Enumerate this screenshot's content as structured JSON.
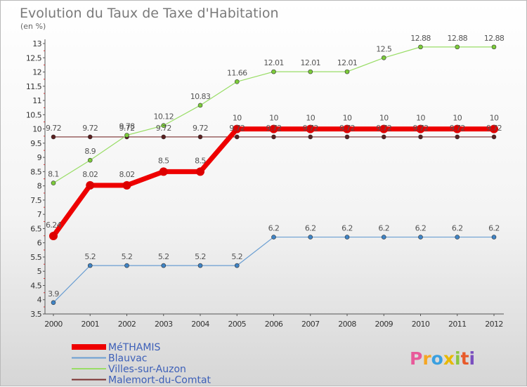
{
  "chart_data": {
    "type": "line",
    "title": "Evolution du Taux de Taxe d'Habitation",
    "subtitle": "(en %)",
    "ylim": [
      3.5,
      13
    ],
    "yticks": [
      3.5,
      4,
      4.5,
      5,
      5.5,
      6,
      6.5,
      7,
      7.5,
      8,
      8.5,
      9,
      9.5,
      10,
      10.5,
      11,
      11.5,
      12,
      12.5,
      13
    ],
    "x": [
      "2000",
      "2001",
      "2002",
      "2003",
      "2004",
      "2005",
      "2006",
      "2007",
      "2008",
      "2009",
      "2010",
      "2011",
      "2012"
    ],
    "grid": false,
    "legend_position": "bottom-left",
    "series": [
      {
        "name": "Malemort-du-Comtat",
        "color": "#7a2e2e",
        "marker": "#5a1f1f",
        "width": 1.2,
        "r": 3,
        "values": [
          9.72,
          9.72,
          9.72,
          9.72,
          9.72,
          9.72,
          9.72,
          9.72,
          9.72,
          9.72,
          9.72,
          9.72,
          9.72
        ],
        "labels": [
          "9.72",
          "9.72",
          "9.72",
          "9.72",
          "9.72",
          "9.72",
          "9.72",
          "9.72",
          "9.72",
          "9.72",
          "9.72",
          "9.72",
          "9.72"
        ]
      },
      {
        "name": "Villes-sur-Auzon",
        "color": "#99dd66",
        "marker": "#7ccc3a",
        "width": 1.2,
        "r": 3,
        "values": [
          8.1,
          8.9,
          9.78,
          10.12,
          10.83,
          11.66,
          12.01,
          12.01,
          12.01,
          12.5,
          12.88,
          12.88,
          12.88
        ],
        "labels": [
          "8.1",
          "8.9",
          "9.78",
          "10.12",
          "10.83",
          "11.66",
          "12.01",
          "12.01",
          "12.01",
          "12.5",
          "12.88",
          "12.88",
          "12.88"
        ]
      },
      {
        "name": "Blauvac",
        "color": "#6a9ed2",
        "marker": "#3f84c6",
        "width": 1.2,
        "r": 3,
        "values": [
          3.9,
          5.2,
          5.2,
          5.2,
          5.2,
          5.2,
          6.2,
          6.2,
          6.2,
          6.2,
          6.2,
          6.2,
          6.2
        ],
        "labels": [
          "3.9",
          "5.2",
          "5.2",
          "5.2",
          "5.2",
          "5.2",
          "6.2",
          "6.2",
          "6.2",
          "6.2",
          "6.2",
          "6.2",
          "6.2"
        ]
      },
      {
        "name": "MéTHAMIS",
        "color": "#ee0000",
        "marker": "#dd0000",
        "width": 7,
        "r": 6,
        "values": [
          6.24,
          8.02,
          8.02,
          8.5,
          8.5,
          10,
          10,
          10,
          10,
          10,
          10,
          10,
          10
        ],
        "labels": [
          "6.24",
          "8.02",
          "8.02",
          "8.5",
          "8.5",
          "10",
          "10",
          "10",
          "10",
          "10",
          "10",
          "10",
          "10"
        ]
      }
    ]
  },
  "legend": {
    "items": [
      {
        "label": "MéTHAMIS",
        "color": "#ee0000"
      },
      {
        "label": "Blauvac",
        "color": "#6a9ed2"
      },
      {
        "label": "Villes-sur-Auzon",
        "color": "#99dd66"
      },
      {
        "label": "Malemort-du-Comtat",
        "color": "#7a2e2e"
      }
    ]
  },
  "logo": {
    "letters": [
      "P",
      "r",
      "o",
      "x",
      "i",
      "t",
      "i"
    ],
    "colors": [
      "#e85a9a",
      "#f5a623",
      "#3aa0e0",
      "#e8b800",
      "#8bc63f",
      "#e85a2a",
      "#7a4fbf"
    ]
  }
}
